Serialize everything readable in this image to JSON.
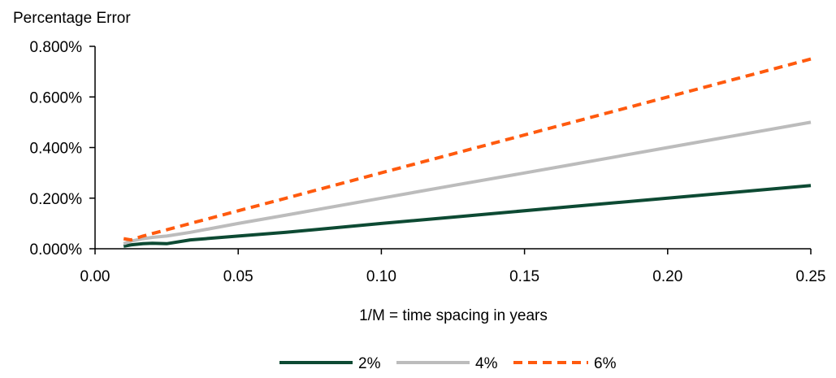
{
  "chart_data": {
    "type": "line",
    "title": "",
    "ylabel": "Percentage Error",
    "xlabel": "1/M = time spacing in years",
    "xlim": [
      0,
      0.25
    ],
    "ylim": [
      0,
      0.008
    ],
    "x_ticks": [
      0,
      0.05,
      0.1,
      0.15,
      0.2,
      0.25
    ],
    "x_tick_labels": [
      "0.00",
      "0.05",
      "0.10",
      "0.15",
      "0.20",
      "0.25"
    ],
    "y_ticks": [
      0,
      0.002,
      0.004,
      0.006,
      0.008
    ],
    "y_tick_labels": [
      "0.000%",
      "0.200%",
      "0.400%",
      "0.600%",
      "0.800%"
    ],
    "grid": false,
    "legend_position": "bottom",
    "series": [
      {
        "name": "2%",
        "color": "#0d4a33",
        "dash": "solid",
        "points": [
          [
            0.01,
            0.0001
          ],
          [
            0.0125,
            0.00015
          ],
          [
            0.0167,
            0.0002
          ],
          [
            0.02,
            0.00022
          ],
          [
            0.025,
            0.0002
          ],
          [
            0.0333,
            0.00035
          ],
          [
            0.05,
            0.0005
          ],
          [
            0.0667,
            0.00065
          ],
          [
            0.1,
            0.001
          ],
          [
            0.125,
            0.00125
          ],
          [
            0.1667,
            0.00167
          ],
          [
            0.2,
            0.002
          ],
          [
            0.25,
            0.0025
          ]
        ]
      },
      {
        "name": "4%",
        "color": "#bcbcbc",
        "dash": "solid",
        "points": [
          [
            0.01,
            0.0002
          ],
          [
            0.0125,
            0.0003
          ],
          [
            0.0167,
            0.0004
          ],
          [
            0.02,
            0.00045
          ],
          [
            0.025,
            0.0005
          ],
          [
            0.0333,
            0.00065
          ],
          [
            0.05,
            0.001
          ],
          [
            0.0667,
            0.00133
          ],
          [
            0.1,
            0.002
          ],
          [
            0.125,
            0.0025
          ],
          [
            0.1667,
            0.00333
          ],
          [
            0.2,
            0.004
          ],
          [
            0.25,
            0.005
          ]
        ]
      },
      {
        "name": "6%",
        "color": "#ff5a0e",
        "dash": "dashed",
        "points": [
          [
            0.01,
            0.0004
          ],
          [
            0.0125,
            0.00035
          ],
          [
            0.0167,
            0.0005
          ],
          [
            0.02,
            0.0006
          ],
          [
            0.025,
            0.00075
          ],
          [
            0.0333,
            0.001
          ],
          [
            0.05,
            0.0015
          ],
          [
            0.0667,
            0.002
          ],
          [
            0.1,
            0.003
          ],
          [
            0.125,
            0.00375
          ],
          [
            0.1667,
            0.005
          ],
          [
            0.2,
            0.006
          ],
          [
            0.25,
            0.0075
          ]
        ]
      }
    ]
  }
}
